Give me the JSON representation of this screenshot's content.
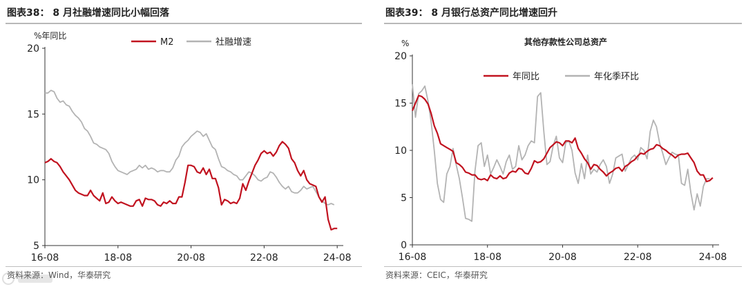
{
  "colors": {
    "red": "#c1121f",
    "gray": "#b3b3b3",
    "axis": "#333333"
  },
  "panels": [
    {
      "title": "图表38：  8 月社融增速同比小幅回落",
      "source": "资料来源：Wind，华泰研究",
      "chart_data": {
        "type": "line",
        "title": "",
        "ylabel": "%年同比",
        "ylim": [
          5,
          20
        ],
        "yticks": [
          5,
          10,
          15,
          20
        ],
        "xlim": [
          0,
          98
        ],
        "xticks": [
          {
            "x": 0,
            "label": "16-08"
          },
          {
            "x": 24,
            "label": "18-08"
          },
          {
            "x": 48,
            "label": "20-08"
          },
          {
            "x": 72,
            "label": "22-08"
          },
          {
            "x": 96,
            "label": "24-08"
          }
        ],
        "legend": "top-center",
        "grid": false,
        "series": [
          {
            "name": "M2",
            "color": "#c1121f",
            "values": [
              11.3,
              11.4,
              11.6,
              11.4,
              11.3,
              11.0,
              10.6,
              10.3,
              10.0,
              9.6,
              9.2,
              9.0,
              8.9,
              8.8,
              8.8,
              9.2,
              8.8,
              8.6,
              8.4,
              9.0,
              8.2,
              8.3,
              8.7,
              8.4,
              8.2,
              8.3,
              8.2,
              8.1,
              8.0,
              8.0,
              8.4,
              8.5,
              8.0,
              8.6,
              8.5,
              8.5,
              8.4,
              8.1,
              8.0,
              8.3,
              8.2,
              8.4,
              8.2,
              8.2,
              8.7,
              8.7,
              9.8,
              11.1,
              11.1,
              11.0,
              10.6,
              10.5,
              10.9,
              10.4,
              10.8,
              10.1,
              10.1,
              9.4,
              8.1,
              8.5,
              8.4,
              8.2,
              8.3,
              8.2,
              8.6,
              9.7,
              9.2,
              9.9,
              10.5,
              11.1,
              11.5,
              12.0,
              12.2,
              12.0,
              12.1,
              11.8,
              12.1,
              12.6,
              12.9,
              12.7,
              12.4,
              11.6,
              11.3,
              10.7,
              10.3,
              10.7,
              10.0,
              9.7,
              9.6,
              9.5,
              8.7,
              8.3,
              8.7,
              7.0,
              6.2,
              6.3,
              6.3
            ],
            "x_start": 0
          },
          {
            "name": "社融增速",
            "color": "#b3b3b3",
            "values": [
              16.6,
              16.6,
              16.8,
              16.7,
              16.2,
              15.9,
              16.0,
              15.7,
              15.6,
              15.2,
              14.9,
              14.7,
              14.4,
              13.9,
              13.7,
              13.3,
              12.8,
              12.7,
              12.5,
              12.4,
              12.3,
              12.0,
              11.4,
              11.0,
              10.7,
              10.6,
              10.5,
              10.4,
              10.6,
              10.7,
              10.8,
              11.1,
              10.9,
              11.1,
              10.8,
              10.9,
              10.8,
              10.6,
              10.7,
              10.7,
              10.6,
              10.6,
              10.9,
              11.5,
              11.8,
              12.5,
              12.8,
              13.0,
              13.3,
              13.5,
              13.7,
              13.6,
              13.3,
              13.5,
              13.0,
              12.5,
              12.3,
              11.6,
              11.0,
              10.9,
              10.7,
              10.6,
              10.4,
              10.3,
              10.0,
              10.0,
              10.3,
              10.6,
              10.5,
              10.3,
              10.0,
              9.9,
              10.1,
              10.2,
              10.6,
              10.5,
              10.2,
              9.8,
              9.5,
              9.3,
              9.5,
              9.1,
              9.0,
              9.0,
              9.2,
              9.5,
              9.3,
              9.4,
              9.5,
              9.1,
              8.7,
              8.4,
              8.2,
              8.1,
              8.2,
              8.1
            ],
            "x_start": 0
          }
        ]
      }
    },
    {
      "title": "图表39：  8 月银行总资产同比增速回升",
      "source": "资料来源：CEIC，华泰研究",
      "chart_data": {
        "type": "line",
        "title": "其他存款性公司总资产",
        "ylabel": "%",
        "ylim": [
          0,
          20
        ],
        "yticks": [
          0,
          5,
          10,
          15,
          20
        ],
        "xlim": [
          0,
          98
        ],
        "xticks": [
          {
            "x": 0,
            "label": "16-08"
          },
          {
            "x": 24,
            "label": "18-08"
          },
          {
            "x": 48,
            "label": "20-08"
          },
          {
            "x": 72,
            "label": "22-08"
          },
          {
            "x": 96,
            "label": "24-08"
          }
        ],
        "legend": "top-center",
        "grid": false,
        "series": [
          {
            "name": "年同比",
            "color": "#c1121f",
            "values": [
              14.2,
              15.0,
              15.8,
              15.7,
              15.4,
              14.9,
              13.9,
              12.6,
              11.8,
              10.7,
              10.5,
              10.3,
              10.1,
              9.9,
              8.7,
              8.5,
              8.2,
              7.7,
              7.6,
              7.4,
              7.4,
              7.0,
              6.9,
              7.0,
              6.8,
              7.4,
              7.1,
              7.0,
              7.3,
              7.0,
              7.1,
              7.6,
              7.8,
              7.7,
              8.1,
              8.0,
              7.6,
              7.5,
              8.1,
              8.9,
              8.7,
              8.8,
              9.1,
              9.7,
              10.3,
              10.6,
              10.9,
              10.8,
              10.5,
              11.0,
              11.0,
              10.8,
              11.3,
              10.2,
              9.7,
              9.1,
              8.7,
              8.0,
              8.5,
              8.4,
              8.0,
              7.7,
              7.3,
              7.6,
              7.8,
              8.1,
              8.2,
              7.8,
              8.3,
              8.5,
              8.8,
              9.0,
              9.4,
              9.7,
              9.6,
              9.9,
              10.1,
              10.2,
              10.6,
              10.5,
              10.2,
              10.0,
              9.7,
              9.5,
              9.2,
              9.5,
              9.6,
              9.6,
              9.7,
              9.2,
              8.7,
              7.8,
              7.4,
              7.4,
              6.7,
              6.8,
              7.1
            ],
            "x_start": 0
          },
          {
            "name": "年化季环比",
            "color": "#b3b3b3",
            "values": [
              17.0,
              13.5,
              16.0,
              16.3,
              16.8,
              15.2,
              13.0,
              10.0,
              6.5,
              4.8,
              4.5,
              7.5,
              8.3,
              10.2,
              8.5,
              7.0,
              5.0,
              2.8,
              2.7,
              2.5,
              7.8,
              10.5,
              10.8,
              8.3,
              9.5,
              7.5,
              8.2,
              9.0,
              8.3,
              7.5,
              8.8,
              9.5,
              8.0,
              8.3,
              10.5,
              9.0,
              9.5,
              10.5,
              11.0,
              10.8,
              15.7,
              16.1,
              12.0,
              8.5,
              8.8,
              10.5,
              11.5,
              9.2,
              8.7,
              10.8,
              11.0,
              10.0,
              7.6,
              6.5,
              8.6,
              7.0,
              9.5,
              7.5,
              8.0,
              7.7,
              8.5,
              9.0,
              8.3,
              6.5,
              7.5,
              9.2,
              9.4,
              9.6,
              7.8,
              8.5,
              9.2,
              9.5,
              9.0,
              10.3,
              10.0,
              9.1,
              12.0,
              13.2,
              12.5,
              10.8,
              9.7,
              8.5,
              9.2,
              9.8,
              9.6,
              9.5,
              6.5,
              6.3,
              8.0,
              5.5,
              3.7,
              5.4,
              4.1,
              6.2,
              7.0,
              7.0
            ],
            "x_start": 0
          }
        ]
      }
    }
  ]
}
